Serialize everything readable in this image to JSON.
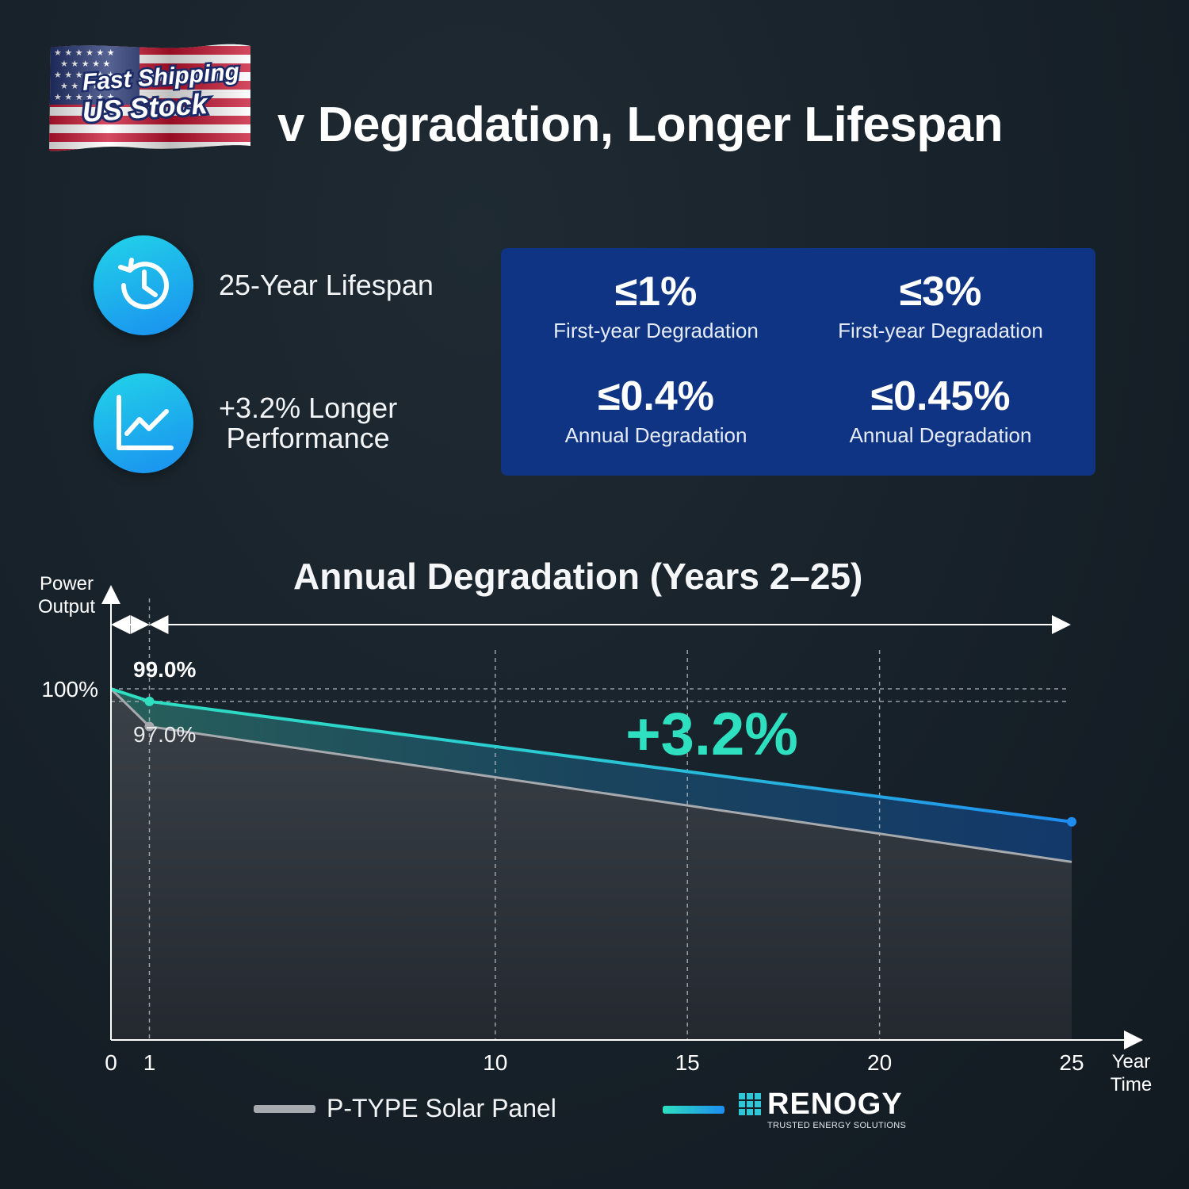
{
  "badge": {
    "line1": "Fast Shipping",
    "line2": "US Stock"
  },
  "title": "Low Degradation, Longer Lifespan",
  "title_visible": "v Degradation, Longer Lifespan",
  "features": [
    {
      "icon": "clock-history-icon",
      "text": "25-Year Lifespan"
    },
    {
      "icon": "trend-chart-icon",
      "line1": "+3.2% Longer",
      "line2": "Performance"
    }
  ],
  "stats": [
    {
      "value": "≤1%",
      "label": "First-year Degradation"
    },
    {
      "value": "≤3%",
      "label": "First-year Degradation"
    },
    {
      "value": "≤0.4%",
      "label": "Annual Degradation"
    },
    {
      "value": "≤0.45%",
      "label": "Annual Degradation"
    }
  ],
  "colors": {
    "panel": "#0f3483",
    "teal": "#2ee0c0",
    "blue": "#1f8df0",
    "gray": "#a6a9ad"
  },
  "chart_data": {
    "type": "area",
    "title": "Annual Degradation (Years 2–25)",
    "ylabel_line1": "Power",
    "ylabel_line2": "Output",
    "xlabel_line1": "Year",
    "xlabel_line2": "Time",
    "y_tick_label": "100%",
    "x_ticks": [
      "0",
      "1",
      "10",
      "15",
      "20",
      "25"
    ],
    "x_tick_values": [
      0,
      1,
      10,
      15,
      20,
      25
    ],
    "xlim": [
      0,
      25
    ],
    "ylim": [
      0,
      100
    ],
    "annotation": "+3.2%",
    "point_labels": {
      "renogy_year1": "99.0%",
      "ptype_year1": "97.0%"
    },
    "series": [
      {
        "name": "RENOGY",
        "x": [
          0,
          1,
          25
        ],
        "y": [
          100,
          99.0,
          89.4
        ]
      },
      {
        "name": "P-TYPE Solar Panel",
        "x": [
          0,
          1,
          25
        ],
        "y": [
          100,
          97.0,
          86.2
        ]
      }
    ]
  },
  "legend": {
    "ptype": "P-TYPE Solar Panel",
    "renogy": "RENOGY",
    "renogy_tag": "TRUSTED ENERGY SOLUTIONS"
  }
}
